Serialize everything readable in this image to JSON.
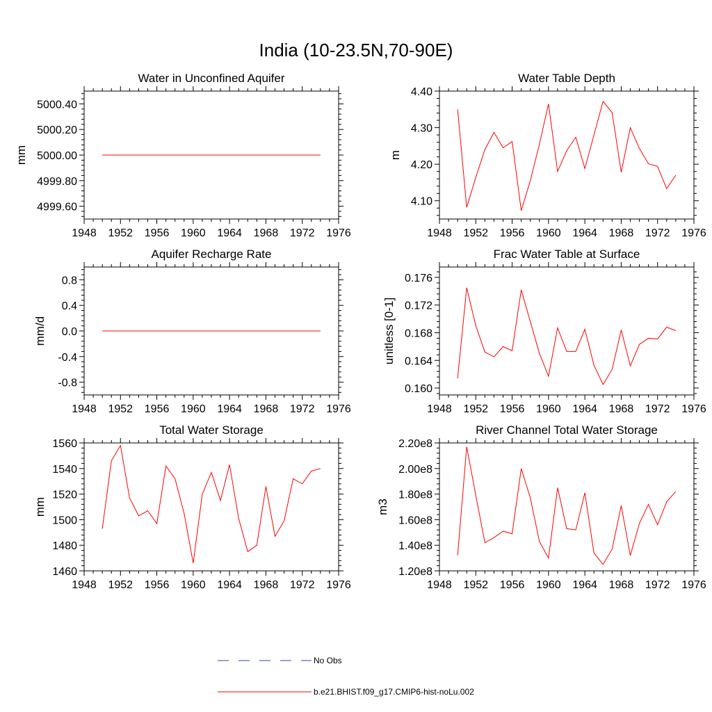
{
  "figure": {
    "title": "India (10-23.5N,70-90E)",
    "legend": [
      {
        "label": "No Obs",
        "color": "#3344aa",
        "dash": true
      },
      {
        "label": "b.e21.BHIST.f09_g17.CMIP6-hist-noLu.002",
        "color": "#ff0000",
        "dash": false
      }
    ]
  },
  "chart_data": [
    {
      "type": "line",
      "title": "Water in Unconfined Aquifer",
      "xlabel": "",
      "ylabel": "mm",
      "xlim": [
        1948,
        1976
      ],
      "ylim": [
        4999.5,
        5000.5
      ],
      "xticks": [
        1948,
        1952,
        1956,
        1960,
        1964,
        1968,
        1972,
        1976
      ],
      "yticks": [
        4999.6,
        4999.8,
        5000.0,
        5000.2,
        5000.4
      ],
      "ytick_labels": [
        "4999.60",
        "4999.80",
        "5000.00",
        "5000.20",
        "5000.40"
      ],
      "ytick_minor": 0.04,
      "x": [
        1950,
        1951,
        1952,
        1953,
        1954,
        1955,
        1956,
        1957,
        1958,
        1959,
        1960,
        1961,
        1962,
        1963,
        1964,
        1965,
        1966,
        1967,
        1968,
        1969,
        1970,
        1971,
        1972,
        1973,
        1974
      ],
      "series": [
        {
          "color": "#ff0000",
          "values": [
            5000.0,
            5000.0,
            5000.0,
            5000.0,
            5000.0,
            5000.0,
            5000.0,
            5000.0,
            5000.0,
            5000.0,
            5000.0,
            5000.0,
            5000.0,
            5000.0,
            5000.0,
            5000.0,
            5000.0,
            5000.0,
            5000.0,
            5000.0,
            5000.0,
            5000.0,
            5000.0,
            5000.0,
            5000.0
          ]
        }
      ]
    },
    {
      "type": "line",
      "title": "Water Table Depth",
      "xlabel": "",
      "ylabel": "m",
      "xlim": [
        1948,
        1976
      ],
      "ylim": [
        4.05,
        4.4
      ],
      "xticks": [
        1948,
        1952,
        1956,
        1960,
        1964,
        1968,
        1972,
        1976
      ],
      "yticks": [
        4.1,
        4.2,
        4.3,
        4.4
      ],
      "ytick_labels": [
        "4.10",
        "4.20",
        "4.30",
        "4.40"
      ],
      "ytick_minor": 0.02,
      "x": [
        1950,
        1951,
        1952,
        1953,
        1954,
        1955,
        1956,
        1957,
        1958,
        1959,
        1960,
        1961,
        1962,
        1963,
        1964,
        1965,
        1966,
        1967,
        1968,
        1969,
        1970,
        1971,
        1972,
        1973,
        1974
      ],
      "series": [
        {
          "color": "#ff0000",
          "values": [
            4.35,
            4.082,
            4.164,
            4.24,
            4.287,
            4.245,
            4.262,
            4.073,
            4.155,
            4.255,
            4.365,
            4.18,
            4.237,
            4.274,
            4.188,
            4.28,
            4.372,
            4.341,
            4.178,
            4.3,
            4.243,
            4.201,
            4.194,
            4.133,
            4.17
          ]
        }
      ]
    },
    {
      "type": "line",
      "title": "Aquifer Recharge Rate",
      "xlabel": "",
      "ylabel": "mm/d",
      "xlim": [
        1948,
        1976
      ],
      "ylim": [
        -1.0,
        1.0
      ],
      "xticks": [
        1948,
        1952,
        1956,
        1960,
        1964,
        1968,
        1972,
        1976
      ],
      "yticks": [
        -0.8,
        -0.4,
        0.0,
        0.4,
        0.8
      ],
      "ytick_labels": [
        "-0.8",
        "-0.4",
        "0.0",
        "0.4",
        "0.8"
      ],
      "ytick_minor": 0.08,
      "x": [
        1950,
        1951,
        1952,
        1953,
        1954,
        1955,
        1956,
        1957,
        1958,
        1959,
        1960,
        1961,
        1962,
        1963,
        1964,
        1965,
        1966,
        1967,
        1968,
        1969,
        1970,
        1971,
        1972,
        1973,
        1974
      ],
      "series": [
        {
          "color": "#ff0000",
          "values": [
            0,
            0,
            0,
            0,
            0,
            0,
            0,
            0,
            0,
            0,
            0,
            0,
            0,
            0,
            0,
            0,
            0,
            0,
            0,
            0,
            0,
            0,
            0,
            0,
            0
          ]
        }
      ]
    },
    {
      "type": "line",
      "title": "Frac Water Table at Surface",
      "xlabel": "",
      "ylabel": "unitless [0-1]",
      "xlim": [
        1948,
        1976
      ],
      "ylim": [
        0.159,
        0.1775
      ],
      "xticks": [
        1948,
        1952,
        1956,
        1960,
        1964,
        1968,
        1972,
        1976
      ],
      "yticks": [
        0.16,
        0.164,
        0.168,
        0.172,
        0.176
      ],
      "ytick_labels": [
        "0.160",
        "0.164",
        "0.168",
        "0.172",
        "0.176"
      ],
      "ytick_minor": 0.0008,
      "x": [
        1950,
        1951,
        1952,
        1953,
        1954,
        1955,
        1956,
        1957,
        1958,
        1959,
        1960,
        1961,
        1962,
        1963,
        1964,
        1965,
        1966,
        1967,
        1968,
        1969,
        1970,
        1971,
        1972,
        1973,
        1974
      ],
      "series": [
        {
          "color": "#ff0000",
          "values": [
            0.1614,
            0.1745,
            0.169,
            0.1652,
            0.1645,
            0.166,
            0.1654,
            0.1742,
            0.1696,
            0.165,
            0.1617,
            0.1687,
            0.1653,
            0.1653,
            0.1685,
            0.1633,
            0.1605,
            0.1627,
            0.1684,
            0.1632,
            0.1663,
            0.1672,
            0.1671,
            0.1688,
            0.1683
          ]
        }
      ]
    },
    {
      "type": "line",
      "title": "Total Water Storage",
      "xlabel": "",
      "ylabel": "mm",
      "xlim": [
        1948,
        1976
      ],
      "ylim": [
        1460,
        1560
      ],
      "xticks": [
        1948,
        1952,
        1956,
        1960,
        1964,
        1968,
        1972,
        1976
      ],
      "yticks": [
        1460,
        1480,
        1500,
        1520,
        1540,
        1560
      ],
      "ytick_labels": [
        "1460",
        "1480",
        "1500",
        "1520",
        "1540",
        "1560"
      ],
      "ytick_minor": 4,
      "x": [
        1950,
        1951,
        1952,
        1953,
        1954,
        1955,
        1956,
        1957,
        1958,
        1959,
        1960,
        1961,
        1962,
        1963,
        1964,
        1965,
        1966,
        1967,
        1968,
        1969,
        1970,
        1971,
        1972,
        1973,
        1974
      ],
      "series": [
        {
          "color": "#ff0000",
          "values": [
            1493,
            1546,
            1558,
            1517,
            1503,
            1507,
            1497,
            1542,
            1532,
            1505,
            1466,
            1520,
            1537,
            1515,
            1543,
            1501,
            1475,
            1480,
            1526,
            1487,
            1499,
            1532,
            1528,
            1538,
            1540
          ]
        }
      ]
    },
    {
      "type": "line",
      "title": "River Channel Total Water Storage",
      "xlabel": "",
      "ylabel": "m3",
      "xlim": [
        1948,
        1976
      ],
      "ylim": [
        120000000.0,
        220000000.0
      ],
      "xticks": [
        1948,
        1952,
        1956,
        1960,
        1964,
        1968,
        1972,
        1976
      ],
      "yticks": [
        120000000.0,
        140000000.0,
        160000000.0,
        180000000.0,
        200000000.0,
        220000000.0
      ],
      "ytick_labels": [
        "1.20e8",
        "1.40e8",
        "1.60e8",
        "1.80e8",
        "2.00e8",
        "2.20e8"
      ],
      "ytick_minor": 4000000.0,
      "x": [
        1950,
        1951,
        1952,
        1953,
        1954,
        1955,
        1956,
        1957,
        1958,
        1959,
        1960,
        1961,
        1962,
        1963,
        1964,
        1965,
        1966,
        1967,
        1968,
        1969,
        1970,
        1971,
        1972,
        1973,
        1974
      ],
      "series": [
        {
          "color": "#ff0000",
          "values": [
            132000000.0,
            217000000.0,
            179000000.0,
            142000000.0,
            146000000.0,
            151000000.0,
            149000000.0,
            200000000.0,
            177000000.0,
            143000000.0,
            130000000.0,
            185000000.0,
            153000000.0,
            152000000.0,
            181000000.0,
            134000000.0,
            125000000.0,
            137000000.0,
            171000000.0,
            132000000.0,
            157000000.0,
            172000000.0,
            156000000.0,
            174000000.0,
            182000000.0
          ]
        }
      ]
    }
  ]
}
